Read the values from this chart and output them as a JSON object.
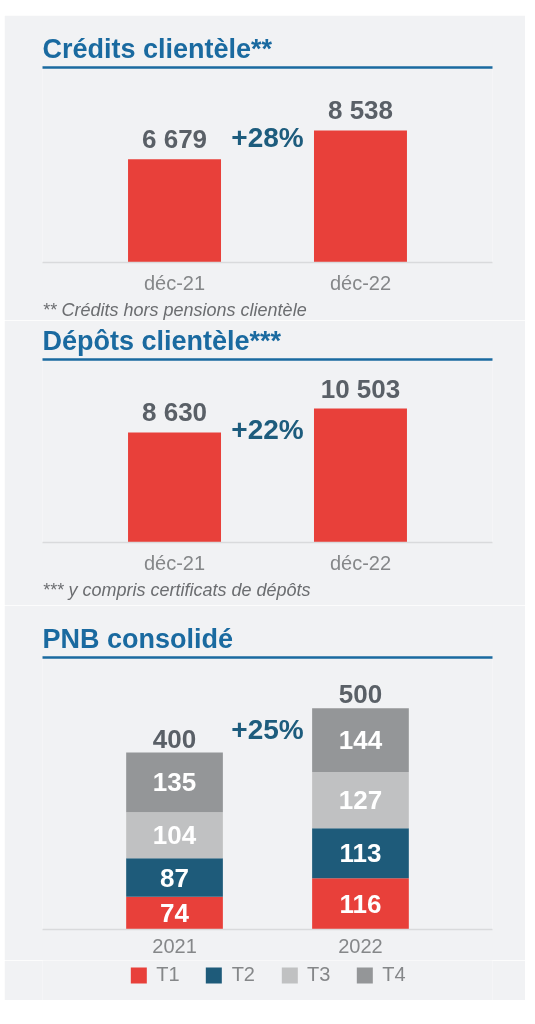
{
  "chart_data": [
    {
      "type": "bar",
      "title": "Crédits clientèle**",
      "categories": [
        "déc-21",
        "déc-22"
      ],
      "values": [
        6679,
        8538
      ],
      "color": "#e8403a",
      "value_labels": [
        "6 679",
        "8 538"
      ],
      "annotations": [
        "+28%",
        "** Crédits hors pensions clientèle"
      ]
    },
    {
      "type": "bar",
      "title": "Dépôts clientèle***",
      "categories": [
        "déc-21",
        "déc-22"
      ],
      "values": [
        8630,
        10503
      ],
      "color": "#e8403a",
      "value_labels": [
        "8 630",
        "10 503"
      ],
      "annotations": [
        "+22%",
        "*** y compris certificats de dépôts"
      ]
    },
    {
      "type": "bar",
      "title": "PNB consolidé",
      "categories": [
        "2021",
        "2022"
      ],
      "stacked": true,
      "series": [
        {
          "name": "T1",
          "color": "#e8403a",
          "values": [
            74,
            116
          ]
        },
        {
          "name": "T2",
          "color": "#1e5b7a",
          "values": [
            87,
            113
          ]
        },
        {
          "name": "T3",
          "color": "#c0c1c2",
          "values": [
            104,
            127
          ]
        },
        {
          "name": "T4",
          "color": "#949698",
          "values": [
            135,
            144
          ]
        }
      ],
      "data_labels": true,
      "totals": [
        "400",
        "500"
      ],
      "legend": "bottom",
      "annotations": [
        "+25%"
      ]
    }
  ]
}
